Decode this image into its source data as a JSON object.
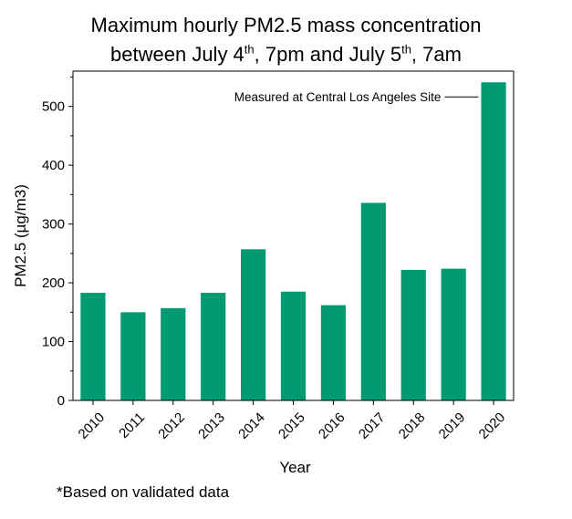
{
  "title": {
    "line1": "Maximum hourly PM2.5 mass concentration",
    "line2_part1": "between July 4",
    "line2_sup1": "th",
    "line2_part2": ", 7pm and July 5",
    "line2_sup2": "th",
    "line2_part3": ", 7am"
  },
  "chart_data": {
    "type": "bar",
    "title": "Maximum hourly PM2.5 mass concentration between July 4th, 7pm and July 5th, 7am",
    "categories": [
      "2010",
      "2011",
      "2012",
      "2013",
      "2014",
      "2015",
      "2016",
      "2017",
      "2018",
      "2019",
      "2020"
    ],
    "values": [
      183,
      150,
      157,
      183,
      257,
      185,
      162,
      336,
      222,
      224,
      541
    ],
    "xlabel": "Year",
    "ylabel": "PM2.5 (µg/m3)",
    "ylim": [
      0,
      560
    ],
    "yticks": [
      0,
      100,
      200,
      300,
      400,
      500
    ],
    "grid": false,
    "bar_color": "#009b72",
    "annotation": {
      "text": "Measured at Central Los Angeles Site",
      "target_category": "2020"
    }
  },
  "footnote": "*Based on validated data"
}
